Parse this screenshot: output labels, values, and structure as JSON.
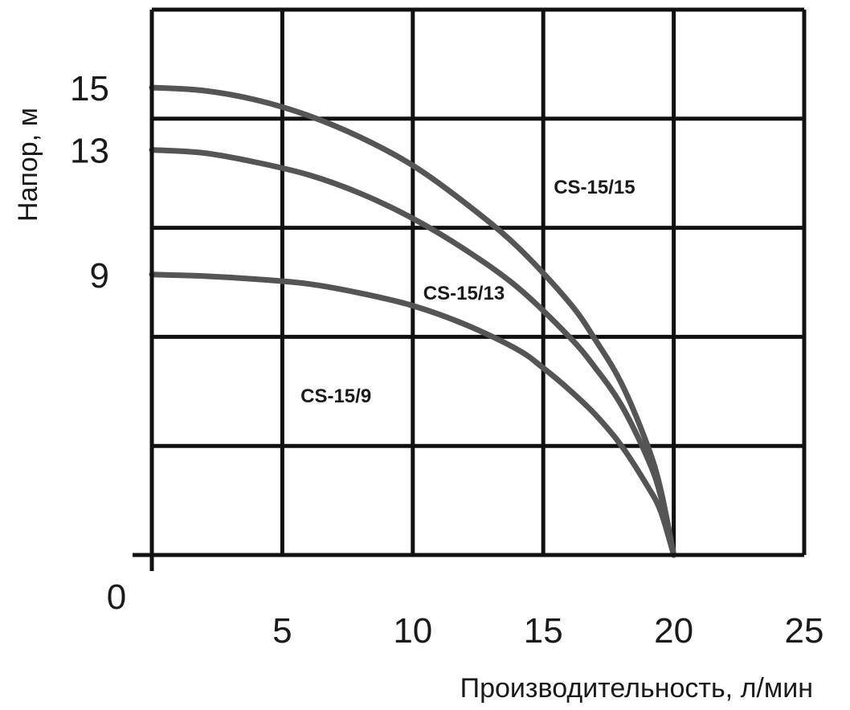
{
  "chart_data": {
    "type": "line",
    "title": "",
    "xlabel": "Производительность, л/мин",
    "ylabel": "Напор, м",
    "xlim": [
      0,
      25
    ],
    "ylim": [
      0,
      17.5
    ],
    "grid": true,
    "x_ticks": [
      {
        "value": 0,
        "label": "0"
      },
      {
        "value": 5,
        "label": "5"
      },
      {
        "value": 10,
        "label": "10"
      },
      {
        "value": 15,
        "label": "15"
      },
      {
        "value": 20,
        "label": "20"
      },
      {
        "value": 25,
        "label": "25"
      }
    ],
    "y_ticks": [
      {
        "value": 9,
        "label": "9"
      },
      {
        "value": 13,
        "label": "13"
      },
      {
        "value": 15,
        "label": "15"
      }
    ],
    "x_grid": [
      0,
      5,
      10,
      15,
      20,
      25
    ],
    "y_grid": [
      0,
      3.5,
      7,
      10.5,
      14,
      17.5
    ],
    "series_color": "#555555",
    "series": [
      {
        "name": "CS-15/15",
        "label_at": [
          15.4,
          11.6
        ],
        "x": [
          0,
          2,
          4,
          6,
          8,
          10,
          12,
          14,
          16,
          17,
          18,
          19,
          19.5,
          20
        ],
        "y": [
          15,
          14.9,
          14.6,
          14.1,
          13.4,
          12.5,
          11.3,
          9.9,
          8.1,
          6.9,
          5.5,
          3.5,
          2.1,
          0
        ]
      },
      {
        "name": "CS-15/13",
        "label_at": [
          10.4,
          8.2
        ],
        "x": [
          0,
          2,
          4,
          6,
          8,
          10,
          12,
          14,
          16,
          17,
          18,
          19,
          19.5,
          20
        ],
        "y": [
          13,
          12.9,
          12.6,
          12.2,
          11.6,
          10.8,
          9.8,
          8.6,
          7.0,
          6.0,
          4.8,
          3.1,
          1.9,
          0
        ]
      },
      {
        "name": "CS-15/9",
        "label_at": [
          5.7,
          4.9
        ],
        "x": [
          0,
          2,
          4,
          6,
          8,
          10,
          12,
          14,
          15,
          16,
          17,
          18,
          19,
          19.5,
          20
        ],
        "y": [
          9,
          8.95,
          8.85,
          8.7,
          8.4,
          8.0,
          7.4,
          6.6,
          6.0,
          5.3,
          4.5,
          3.5,
          2.2,
          1.4,
          0
        ]
      }
    ]
  }
}
